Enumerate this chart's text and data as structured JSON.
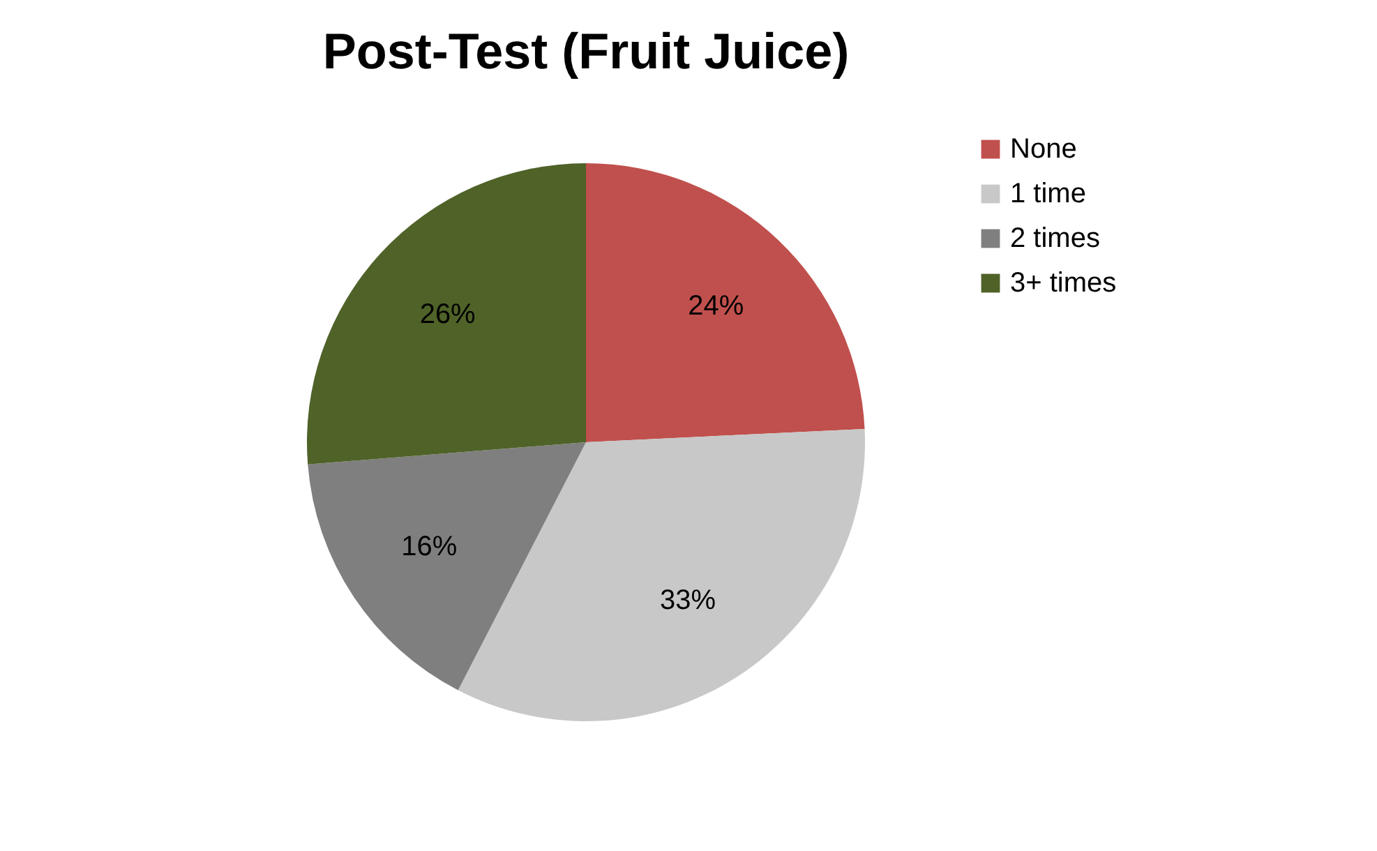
{
  "chart_data": {
    "type": "pie",
    "title": "Post-Test (Fruit Juice)",
    "categories": [
      "None",
      "1 time",
      "2 times",
      "3+ times"
    ],
    "values": [
      24,
      33,
      16,
      26
    ],
    "colors": [
      "#c0504d",
      "#c8c8c8",
      "#7f7f7f",
      "#4f6228"
    ],
    "value_labels": [
      "24%",
      "33%",
      "16%",
      "26%"
    ],
    "legend": "right"
  }
}
